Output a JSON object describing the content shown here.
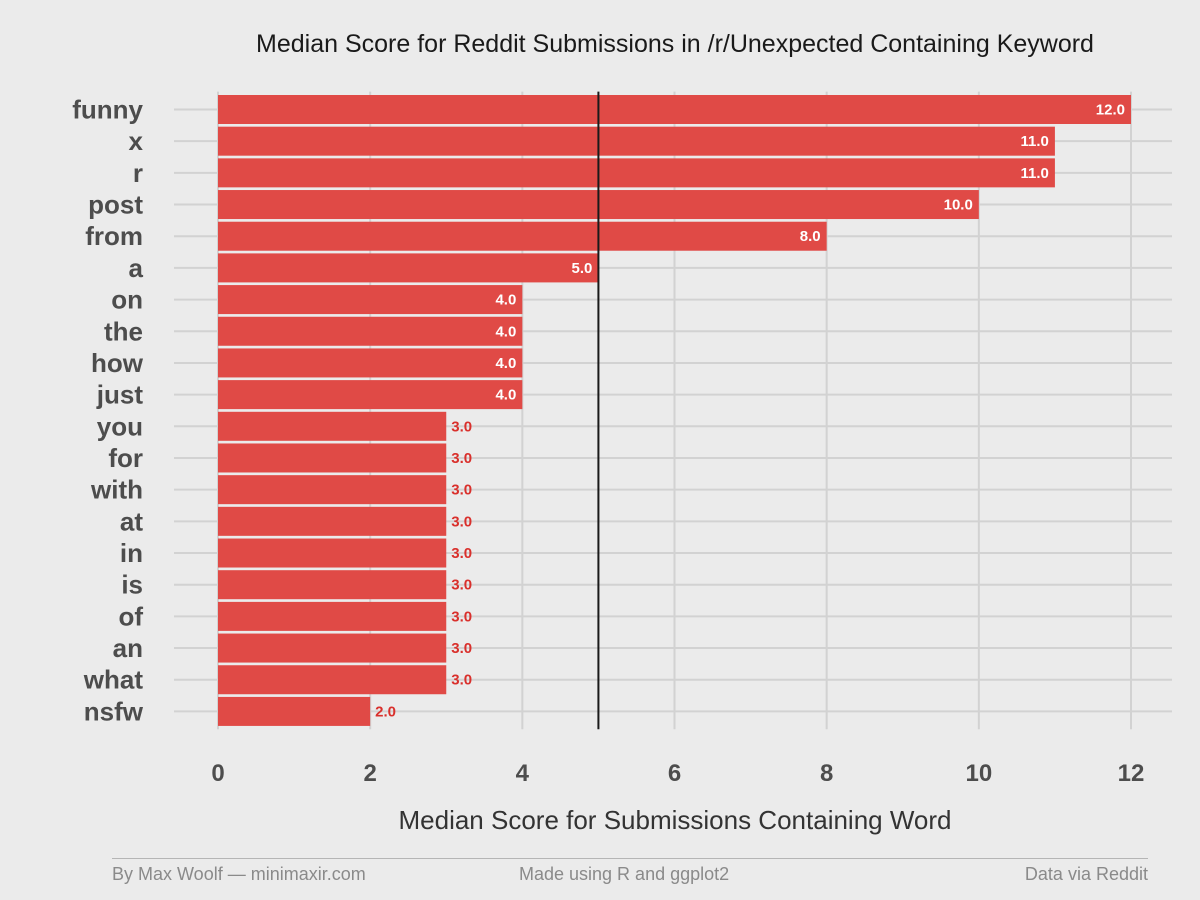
{
  "chart_data": {
    "type": "bar",
    "orientation": "horizontal",
    "title": "Median Score for Reddit Submissions in /r/Unexpected Containing Keyword",
    "xlabel": "Median Score for Submissions Containing Word",
    "ylabel": "",
    "categories": [
      "funny",
      "x",
      "r",
      "post",
      "from",
      "a",
      "on",
      "the",
      "how",
      "just",
      "you",
      "for",
      "with",
      "at",
      "in",
      "is",
      "of",
      "an",
      "what",
      "nsfw"
    ],
    "values": [
      12.0,
      11.0,
      11.0,
      10.0,
      8.0,
      5.0,
      4.0,
      4.0,
      4.0,
      4.0,
      3.0,
      3.0,
      3.0,
      3.0,
      3.0,
      3.0,
      3.0,
      3.0,
      3.0,
      2.0
    ],
    "value_labels": [
      "12.0",
      "11.0",
      "11.0",
      "10.0",
      "8.0",
      "5.0",
      "4.0",
      "4.0",
      "4.0",
      "4.0",
      "3.0",
      "3.0",
      "3.0",
      "3.0",
      "3.0",
      "3.0",
      "3.0",
      "3.0",
      "3.0",
      "2.0"
    ],
    "xlim": [
      0,
      12
    ],
    "xticks": [
      0,
      2,
      4,
      6,
      8,
      10,
      12
    ],
    "xtick_labels": [
      "0",
      "2",
      "4",
      "6",
      "8",
      "10",
      "12"
    ],
    "reference_line": 5,
    "grid": true,
    "legend": "none"
  },
  "colors": {
    "bar": "#e04a46",
    "background": "#ebebeb",
    "grid": "#d2d2d2",
    "reference_line": "#1a1a1a",
    "label_inside": "#ffffff",
    "label_outside": "#d9302c"
  },
  "footer": {
    "left": "By Max Woolf — minimaxir.com",
    "center": "Made using R and ggplot2",
    "right": "Data via Reddit"
  }
}
